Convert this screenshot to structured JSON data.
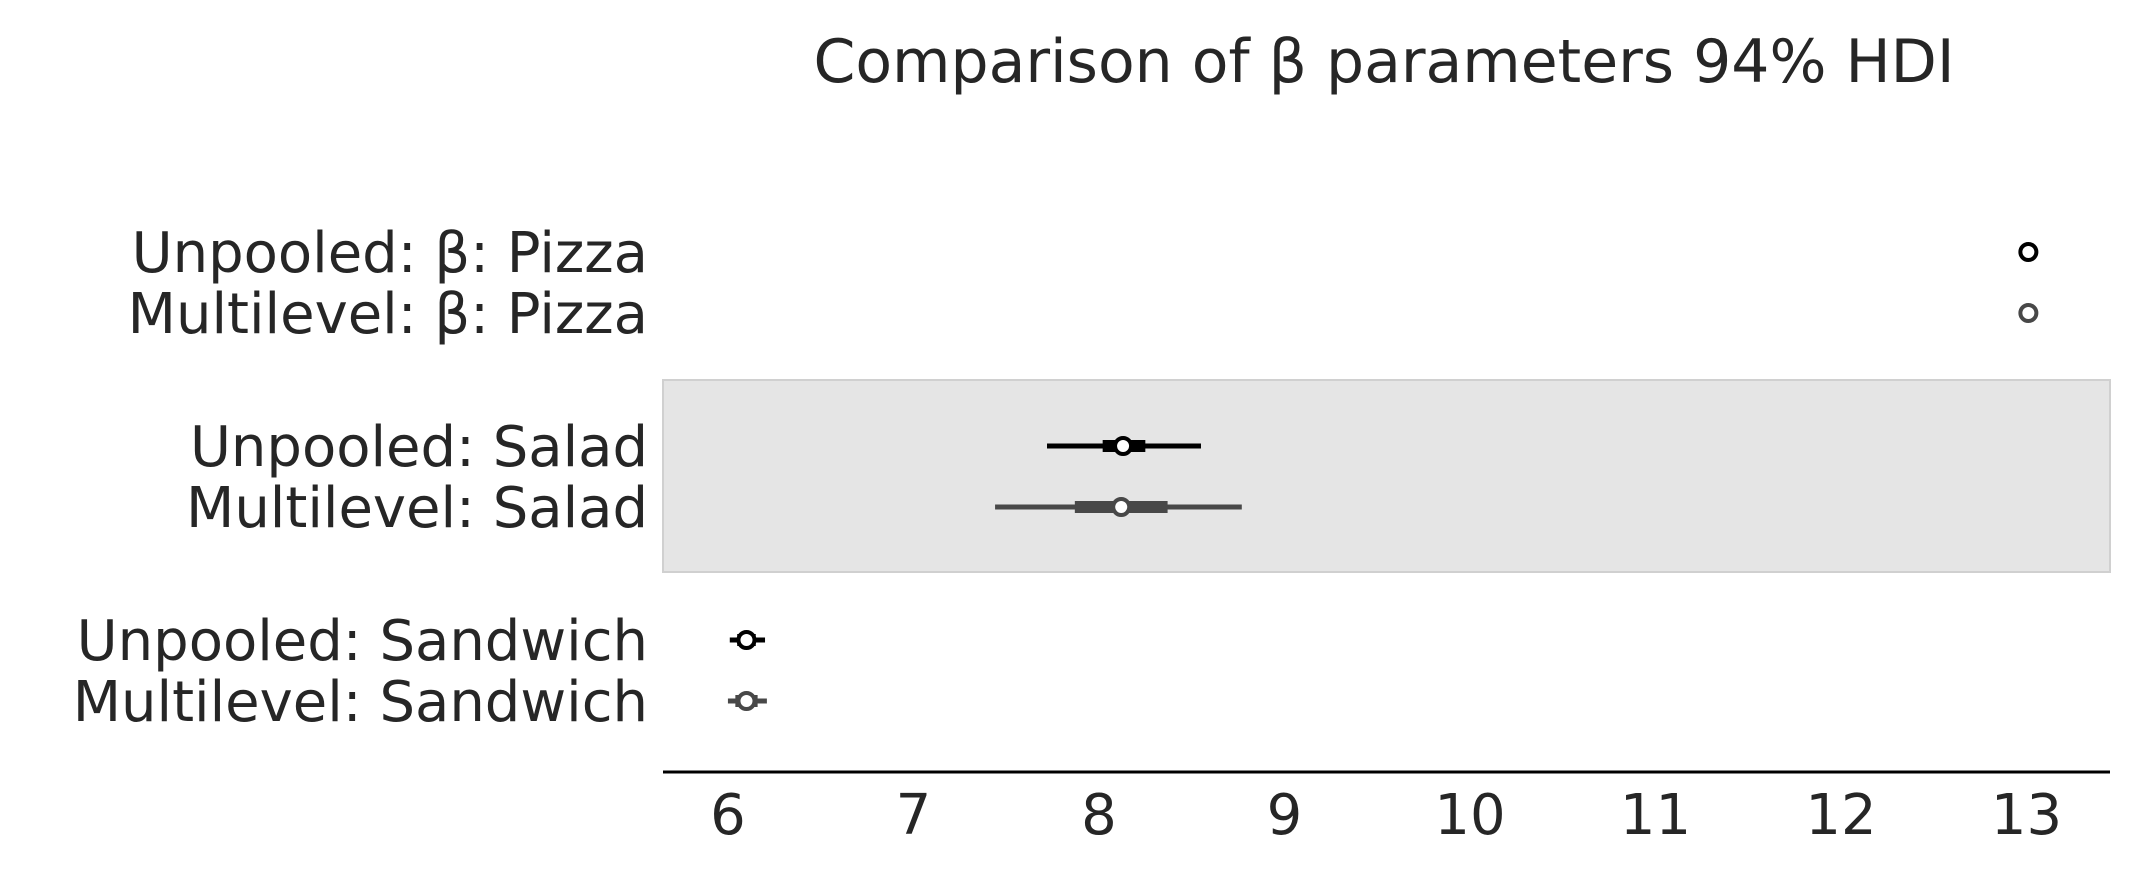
{
  "chart_data": {
    "type": "forest",
    "title": "Comparison of β parameters 94% HDI",
    "xlim": [
      5.65,
      13.45
    ],
    "xticks": [
      6,
      7,
      8,
      9,
      10,
      11,
      12,
      13
    ],
    "xtick_labels": [
      "6",
      "7",
      "8",
      "9",
      "10",
      "11",
      "12",
      "13"
    ],
    "series": [
      {
        "name": "Unpooled",
        "color": "#000000"
      },
      {
        "name": "Multilevel",
        "color": "#484848"
      }
    ],
    "groups": [
      {
        "shaded": false,
        "rows": [
          {
            "label": "Unpooled: β: Pizza",
            "series": 0,
            "mean": 13.01,
            "hdi": [
              13.01,
              13.01
            ],
            "iqr": [
              13.01,
              13.01
            ]
          },
          {
            "label": "Multilevel: β: Pizza",
            "series": 1,
            "mean": 13.01,
            "hdi": [
              13.01,
              13.01
            ],
            "iqr": [
              13.01,
              13.01
            ]
          }
        ]
      },
      {
        "shaded": true,
        "rows": [
          {
            "label": "Unpooled:  Salad",
            "series": 0,
            "mean": 8.13,
            "hdi": [
              7.72,
              8.55
            ],
            "iqr": [
              8.02,
              8.25
            ]
          },
          {
            "label": "Multilevel:  Salad",
            "series": 1,
            "mean": 8.12,
            "hdi": [
              7.44,
              8.77
            ],
            "iqr": [
              7.87,
              8.37
            ]
          }
        ]
      },
      {
        "shaded": false,
        "rows": [
          {
            "label": "Unpooled:  Sandwich",
            "series": 0,
            "mean": 6.1,
            "hdi": [
              6.01,
              6.2
            ],
            "iqr": [
              6.05,
              6.15
            ]
          },
          {
            "label": "Multilevel:  Sandwich",
            "series": 1,
            "mean": 6.1,
            "hdi": [
              6.0,
              6.21
            ],
            "iqr": [
              6.04,
              6.16
            ]
          }
        ]
      }
    ],
    "grid": false,
    "legend": "none"
  }
}
